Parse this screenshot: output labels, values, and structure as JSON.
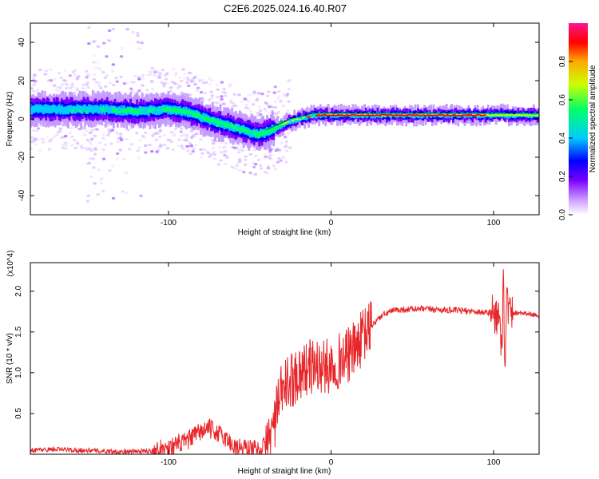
{
  "title": "C2E6.2025.024.16.40.R07",
  "chart_data": [
    {
      "type": "heatmap",
      "xlabel": "Height of straight line (km)",
      "ylabel": "Frequency (Hz)",
      "xlim": [
        -185,
        128
      ],
      "ylim": [
        -50,
        50
      ],
      "xticks": [
        -100,
        0,
        100
      ],
      "yticks": [
        -40,
        -20,
        0,
        20,
        40
      ],
      "colorbar": {
        "label": "Normalized spectral amplitude",
        "range": [
          0,
          1
        ],
        "ticks": [
          0.0,
          0.2,
          0.4,
          0.6,
          0.8
        ],
        "colors": [
          "#ffffff",
          "#cc99ff",
          "#7a00ff",
          "#0000ff",
          "#00ccff",
          "#00ff66",
          "#ccff00",
          "#ffaa00",
          "#ff0000",
          "#ff1493"
        ]
      },
      "ridge": {
        "x": [
          -185,
          -160,
          -140,
          -120,
          -100,
          -90,
          -80,
          -70,
          -60,
          -50,
          -45,
          -40,
          -35,
          -30,
          -25,
          -20,
          -15,
          -10,
          -5,
          0,
          20,
          50,
          80,
          100,
          128
        ],
        "frequency": [
          5,
          5,
          5,
          4,
          5,
          4,
          1,
          -2,
          -4,
          -7,
          -8,
          -7,
          -5,
          -3,
          -1,
          0,
          1,
          2,
          2,
          2,
          2,
          2,
          2,
          2,
          2
        ]
      }
    },
    {
      "type": "line",
      "xlabel": "Height of straight line (km)",
      "ylabel": "SNR (10 * v/v)",
      "y_multiplier": "(x10^4)",
      "xlim": [
        -185,
        128
      ],
      "ylim": [
        0,
        2.35
      ],
      "xticks": [
        -100,
        0,
        100
      ],
      "yticks": [
        0.5,
        1.0,
        1.5,
        2.0
      ],
      "color": "#e8262a",
      "series": [
        {
          "x": [
            -185,
            -170,
            -155,
            -140,
            -125,
            -110,
            -100,
            -90,
            -80,
            -75,
            -70,
            -65,
            -60,
            -55,
            -50,
            -45,
            -40,
            -36,
            -33,
            -30,
            -25,
            -20,
            -15,
            -10,
            -5,
            0,
            5,
            10,
            15,
            20,
            25,
            30,
            35,
            40,
            50,
            60,
            70,
            80,
            90,
            95,
            100,
            103,
            105,
            106,
            107,
            108,
            110,
            115,
            120,
            128
          ],
          "y": [
            0.05,
            0.06,
            0.05,
            0.04,
            0.03,
            0.04,
            0.08,
            0.15,
            0.28,
            0.32,
            0.26,
            0.2,
            0.1,
            0.08,
            0.07,
            0.06,
            0.1,
            0.3,
            0.55,
            0.8,
            0.9,
            1.0,
            1.05,
            1.1,
            1.05,
            1.1,
            1.15,
            1.2,
            1.3,
            1.45,
            1.58,
            1.68,
            1.74,
            1.77,
            1.78,
            1.78,
            1.77,
            1.76,
            1.75,
            1.74,
            1.73,
            1.7,
            1.3,
            2.2,
            1.1,
            1.9,
            1.72,
            1.74,
            1.73,
            1.7
          ]
        }
      ]
    }
  ]
}
